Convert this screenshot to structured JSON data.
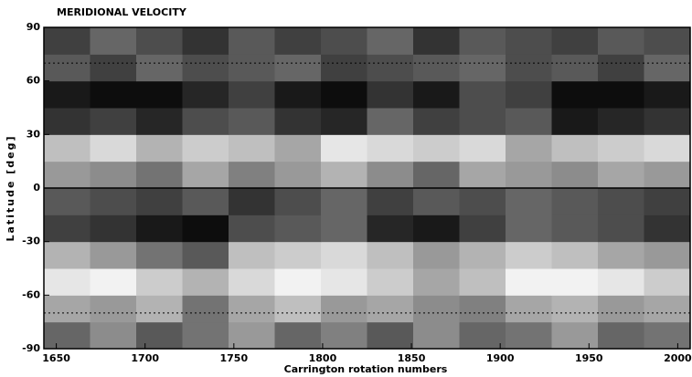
{
  "chart_data": {
    "type": "heatmap",
    "title": "MERIDIONAL VELOCITY",
    "xlabel": "Carrington rotation numbers",
    "ylabel": "Latitude [deg]",
    "xlim": [
      1643,
      2007
    ],
    "ylim": [
      -90,
      90
    ],
    "xticks": [
      1650,
      1700,
      1750,
      1800,
      1850,
      1900,
      1950,
      2000
    ],
    "yticks": [
      -90,
      -60,
      -30,
      0,
      30,
      60,
      90
    ],
    "xbins": [
      1643,
      1669,
      1695,
      1721,
      1747,
      1773,
      1799,
      1825,
      1851,
      1877,
      1903,
      1929,
      1955,
      1981,
      2007
    ],
    "ybins": [
      -90,
      -75,
      -60,
      -45,
      -30,
      -15,
      0,
      15,
      30,
      45,
      60,
      75,
      90
    ],
    "colormap": "black-positive",
    "hlines": [
      {
        "value": -70,
        "style": "dotted"
      },
      {
        "value": 0,
        "style": "solid"
      },
      {
        "value": 70,
        "style": "dotted"
      }
    ],
    "values": [
      [
        0.2,
        -0.1,
        0.3,
        0.1,
        -0.2,
        0.2,
        0.0,
        0.3,
        -0.1,
        0.2,
        0.1,
        -0.2,
        0.2,
        0.1
      ],
      [
        -0.3,
        -0.2,
        -0.4,
        0.1,
        -0.3,
        -0.5,
        -0.2,
        -0.3,
        -0.1,
        0.0,
        -0.3,
        -0.4,
        -0.2,
        -0.3
      ],
      [
        -0.8,
        -0.9,
        -0.6,
        -0.4,
        -0.7,
        -0.9,
        -0.8,
        -0.6,
        -0.3,
        -0.5,
        -0.9,
        -0.9,
        -0.8,
        -0.6
      ],
      [
        -0.4,
        -0.2,
        0.1,
        0.3,
        -0.5,
        -0.6,
        -0.7,
        -0.5,
        -0.2,
        -0.4,
        -0.6,
        -0.5,
        -0.3,
        -0.2
      ],
      [
        0.5,
        0.6,
        0.8,
        0.9,
        0.4,
        0.3,
        0.2,
        0.7,
        0.8,
        0.5,
        0.2,
        0.3,
        0.4,
        0.6
      ],
      [
        0.3,
        0.4,
        0.5,
        0.3,
        0.6,
        0.4,
        0.2,
        0.5,
        0.3,
        0.4,
        0.2,
        0.3,
        0.4,
        0.5
      ],
      [
        -0.2,
        -0.1,
        0.1,
        -0.3,
        0.0,
        -0.2,
        -0.4,
        -0.1,
        0.2,
        -0.3,
        -0.2,
        -0.1,
        -0.3,
        -0.2
      ],
      [
        -0.5,
        -0.7,
        -0.4,
        -0.6,
        -0.5,
        -0.3,
        -0.8,
        -0.7,
        -0.6,
        -0.7,
        -0.3,
        -0.5,
        -0.6,
        -0.7
      ],
      [
        0.6,
        0.5,
        0.7,
        0.4,
        0.3,
        0.6,
        0.7,
        0.2,
        0.5,
        0.4,
        0.3,
        0.8,
        0.7,
        0.6
      ],
      [
        0.8,
        0.9,
        0.9,
        0.7,
        0.5,
        0.8,
        0.9,
        0.6,
        0.8,
        0.4,
        0.5,
        0.9,
        0.9,
        0.8
      ],
      [
        0.3,
        0.5,
        0.2,
        0.4,
        0.3,
        0.2,
        0.5,
        0.4,
        0.3,
        0.2,
        0.4,
        0.3,
        0.5,
        0.2
      ],
      [
        0.5,
        0.2,
        0.4,
        0.6,
        0.3,
        0.5,
        0.4,
        0.2,
        0.6,
        0.3,
        0.4,
        0.5,
        0.3,
        0.4
      ]
    ]
  }
}
